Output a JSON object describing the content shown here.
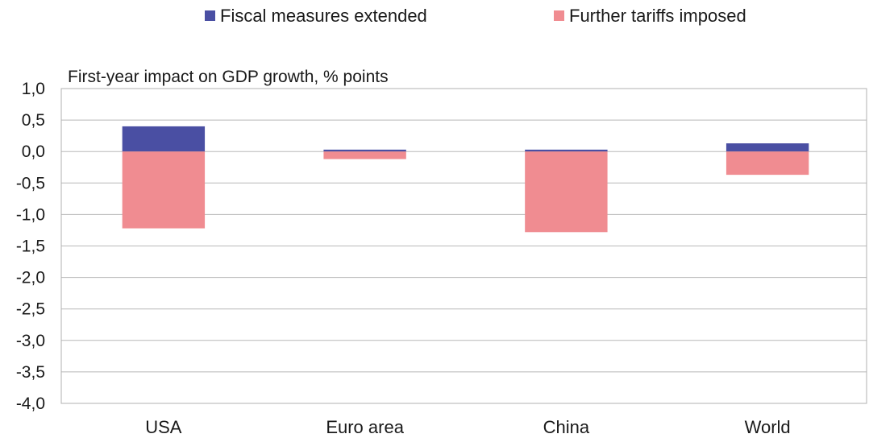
{
  "chart_data": {
    "type": "bar",
    "stacked": true,
    "title": "First-year impact on GDP growth, % points",
    "categories": [
      "USA",
      "Euro area",
      "China",
      "World"
    ],
    "series": [
      {
        "name": "Fiscal measures extended",
        "color": "#4a4fa3",
        "values": [
          0.4,
          0.03,
          0.03,
          0.13
        ]
      },
      {
        "name": "Further tariffs imposed",
        "color": "#f08c91",
        "values": [
          -1.22,
          -0.12,
          -1.28,
          -0.37
        ]
      }
    ],
    "ylim": [
      -4.0,
      1.0
    ],
    "yticks": [
      "1,0",
      "0,5",
      "0,0",
      "-0,5",
      "-1,0",
      "-1,5",
      "-2,0",
      "-2,5",
      "-3,0",
      "-3,5",
      "-4,0"
    ],
    "grid": true,
    "legend_position": "top"
  }
}
